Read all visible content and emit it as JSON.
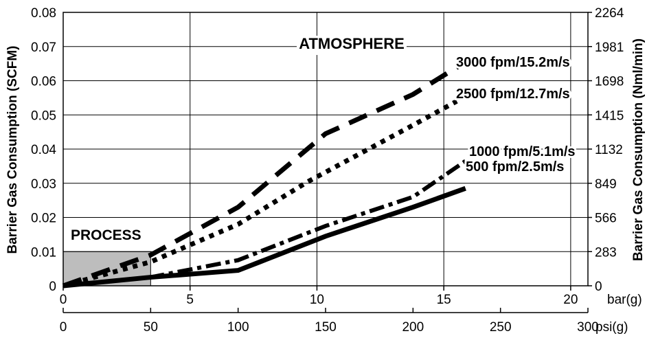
{
  "chart_data": {
    "type": "line",
    "ylabel_left": "Barrier Gas Consumption (SCFM)",
    "ylabel_right": "Barrier Gas Consumption (Nml/min)",
    "xlabel_bar": "bar(g)",
    "xlabel_psi": "psi(g)",
    "ylim": [
      0,
      0.08
    ],
    "xlim_psi": [
      0,
      300
    ],
    "xlim_bar": [
      0,
      20.68
    ],
    "yticks_left": [
      "0",
      "0.01",
      "0.02",
      "0.03",
      "0.04",
      "0.05",
      "0.06",
      "0.07",
      "0.08"
    ],
    "yticks_right": [
      "0",
      "283",
      "566",
      "849",
      "1132",
      "1415",
      "1698",
      "1981",
      "2264"
    ],
    "xticks_bar": [
      "0",
      "5",
      "10",
      "15",
      "20"
    ],
    "xticks_psi": [
      "0",
      "50",
      "100",
      "150",
      "200",
      "250",
      "300"
    ],
    "grid": true,
    "region_labels": {
      "atmosphere": "ATMOSPHERE",
      "process": "PROCESS"
    },
    "process_region": {
      "x_psi": [
        0,
        50
      ],
      "y": [
        0,
        0.01
      ]
    },
    "series": [
      {
        "name": "3000 fpm/15.2m/s",
        "style": "dashed",
        "x_psi": [
          0,
          50,
          100,
          150,
          200,
          230
        ],
        "y": [
          0,
          0.009,
          0.023,
          0.0445,
          0.056,
          0.0655
        ]
      },
      {
        "name": "2500 fpm/12.7m/s",
        "style": "dotted",
        "x_psi": [
          0,
          50,
          100,
          140,
          200,
          225
        ],
        "y": [
          0,
          0.007,
          0.018,
          0.0305,
          0.047,
          0.054
        ]
      },
      {
        "name": "1000 fpm/5.1m/s",
        "style": "dash-dot",
        "x_psi": [
          0,
          50,
          100,
          150,
          200,
          230
        ],
        "y": [
          0,
          0.0025,
          0.0075,
          0.0175,
          0.026,
          0.0365
        ]
      },
      {
        "name": "500 fpm/2.5m/s",
        "style": "solid",
        "x_psi": [
          0,
          50,
          100,
          150,
          200,
          230
        ],
        "y": [
          0,
          0.0025,
          0.0045,
          0.0145,
          0.023,
          0.0285
        ]
      }
    ]
  }
}
